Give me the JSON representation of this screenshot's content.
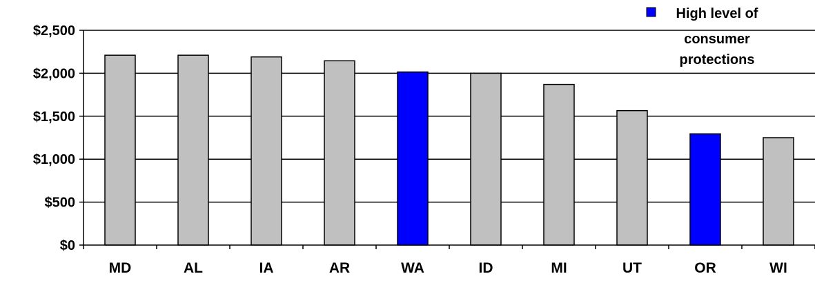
{
  "chart_data": {
    "type": "bar",
    "categories": [
      "MD",
      "AL",
      "IA",
      "AR",
      "WA",
      "ID",
      "MI",
      "UT",
      "OR",
      "WI"
    ],
    "values": [
      2210,
      2210,
      2190,
      2145,
      2015,
      2000,
      1870,
      1565,
      1295,
      1250
    ],
    "highlighted": [
      false,
      false,
      false,
      false,
      true,
      false,
      false,
      false,
      true,
      false
    ],
    "ylim": [
      0,
      2500
    ],
    "yticks": [
      0,
      500,
      1000,
      1500,
      2000,
      2500
    ],
    "ytick_labels": [
      "$0",
      "$500",
      "$1,000",
      "$1,500",
      "$2,000",
      "$2,500"
    ],
    "grid": true,
    "legend": {
      "placement": "top-right",
      "line1": "High level of",
      "line2": "consumer",
      "line3": "protections"
    },
    "colors": {
      "default_bar": "#c0c0c0",
      "highlight_bar": "#0000ff",
      "bar_stroke": "#000000",
      "grid": "#000000"
    },
    "title": "",
    "xlabel": "",
    "ylabel": ""
  }
}
